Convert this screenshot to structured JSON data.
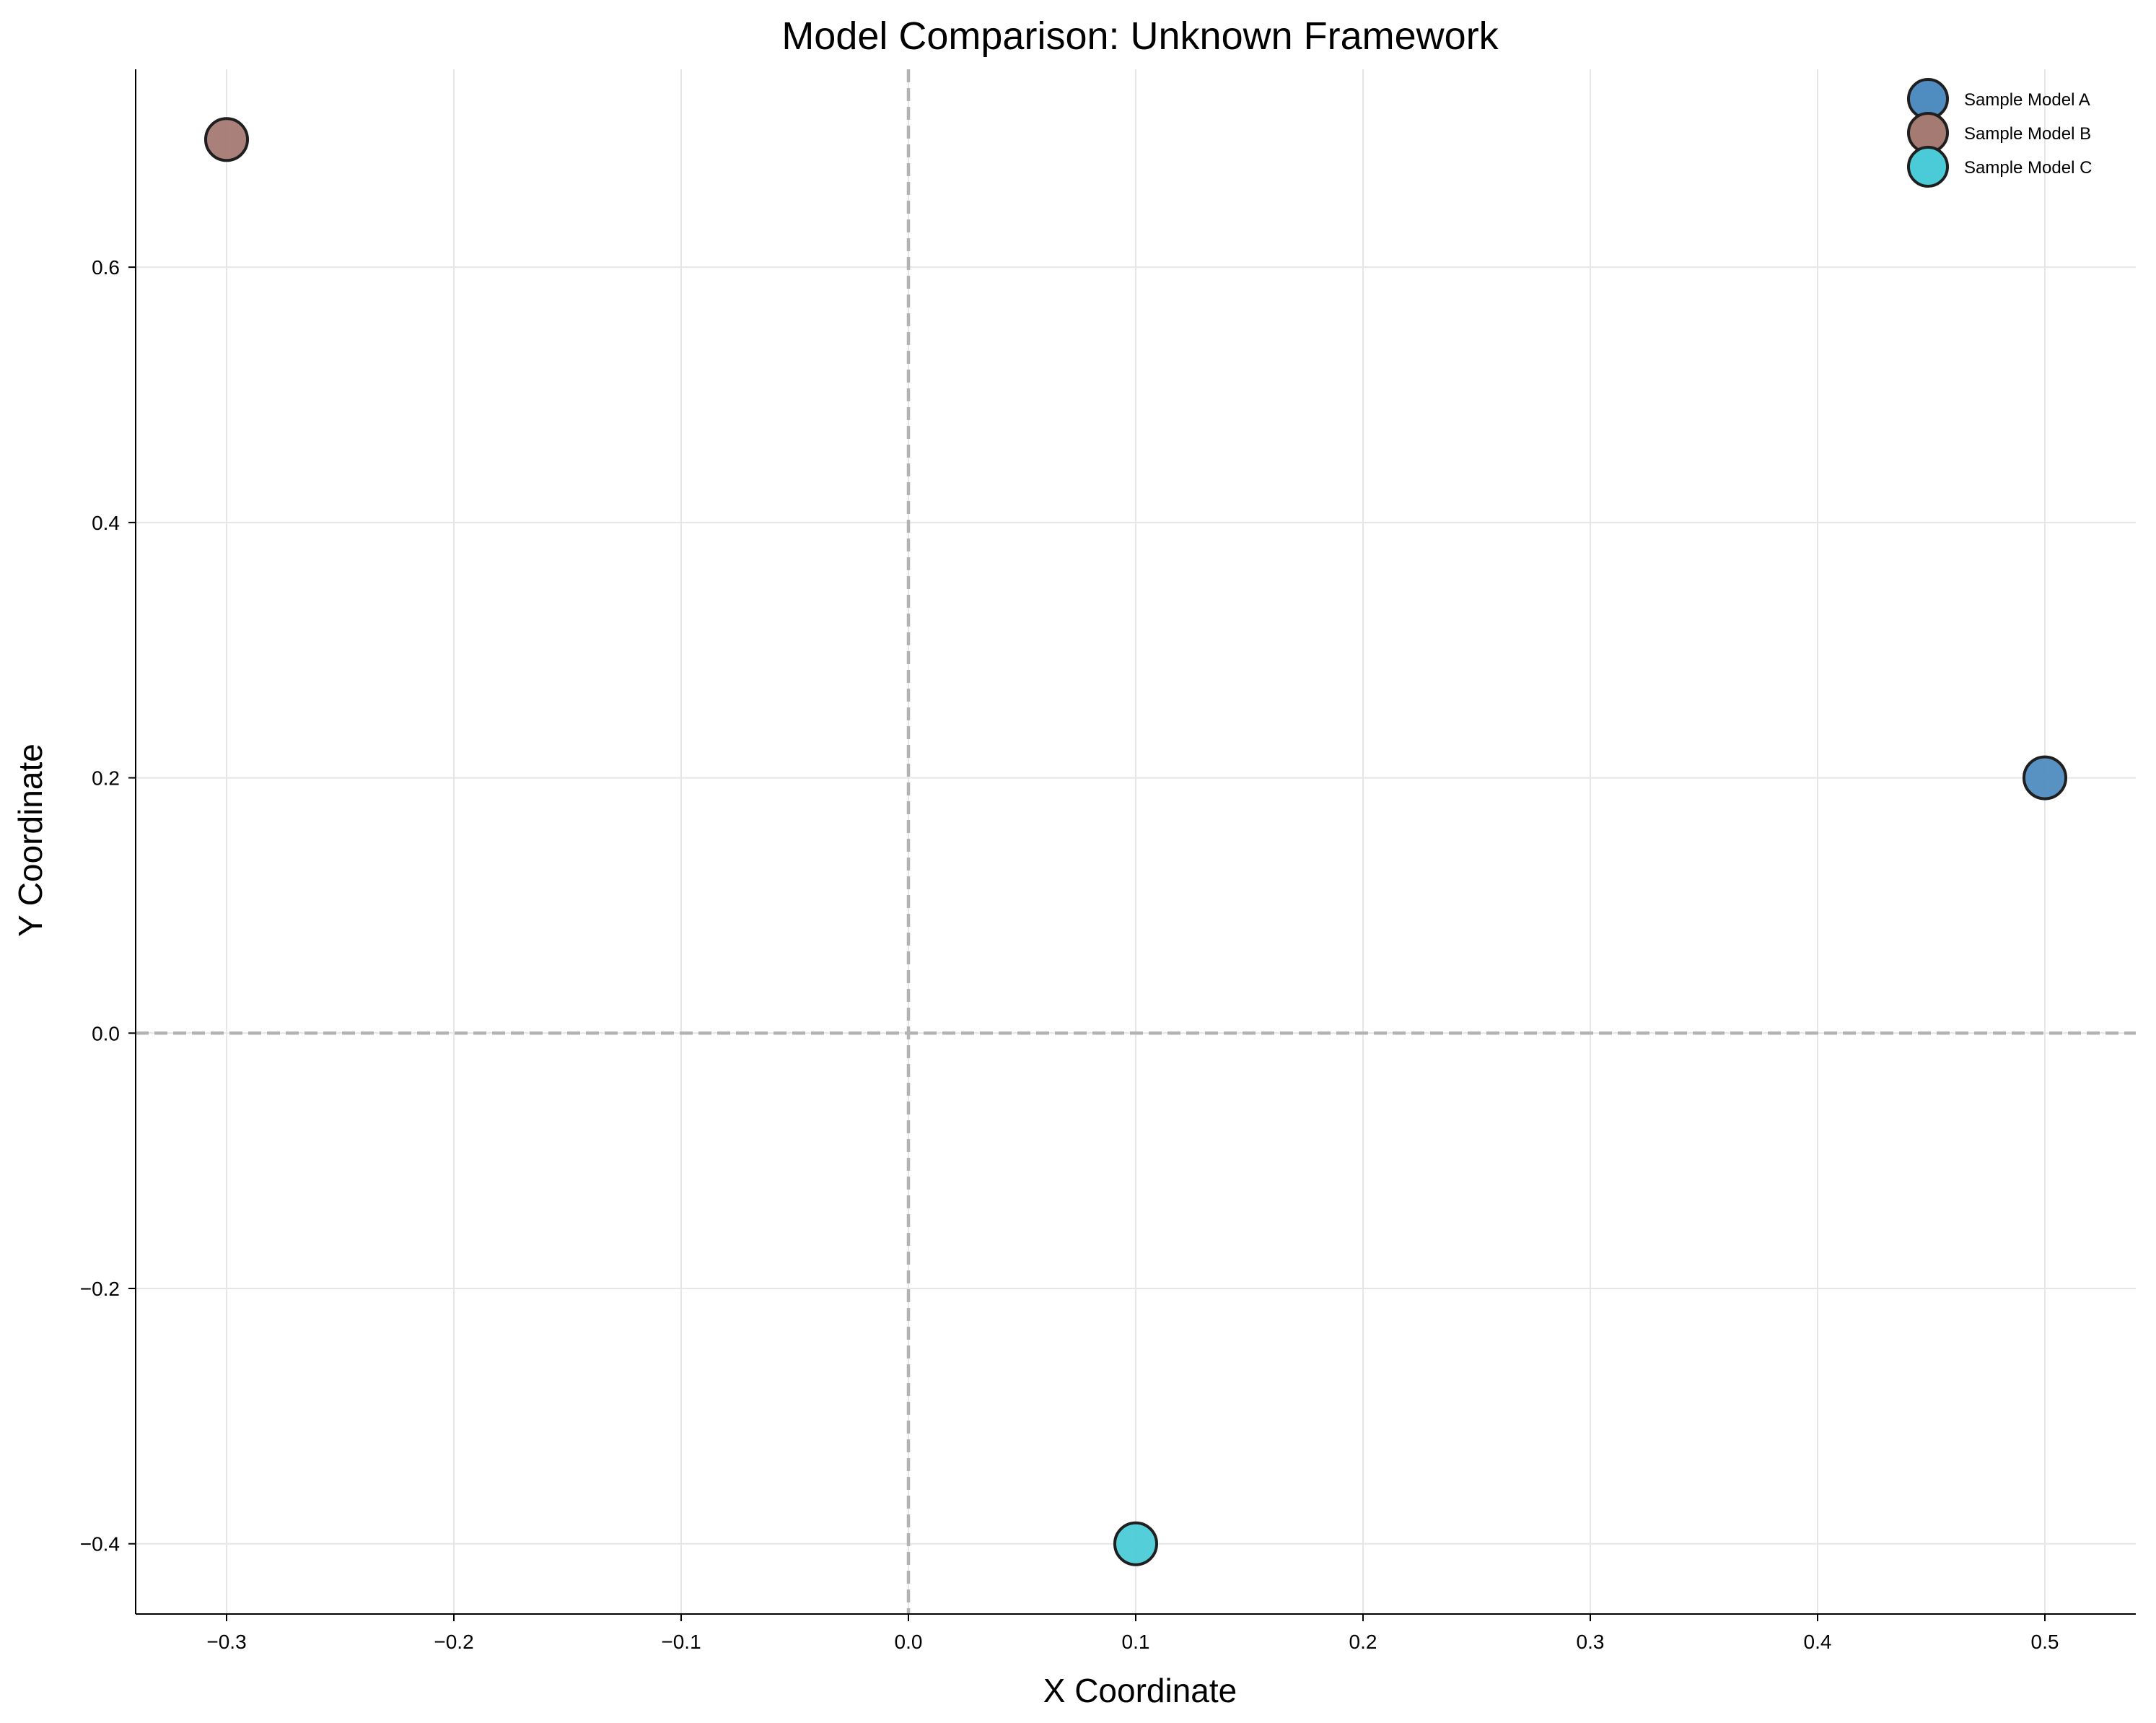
{
  "chart_data": {
    "type": "scatter",
    "title": "Model Comparison: Unknown Framework",
    "xlabel": "X Coordinate",
    "ylabel": "Y Coordinate",
    "xlim": [
      -0.34,
      0.54
    ],
    "ylim": [
      -0.455,
      0.755
    ],
    "xticks": [
      -0.3,
      -0.2,
      -0.1,
      0.0,
      0.1,
      0.2,
      0.3,
      0.4,
      0.5
    ],
    "yticks": [
      -0.4,
      -0.2,
      0.0,
      0.2,
      0.4,
      0.6
    ],
    "xtick_labels": [
      "−0.3",
      "−0.2",
      "−0.1",
      "0.0",
      "0.1",
      "0.2",
      "0.3",
      "0.4",
      "0.5"
    ],
    "ytick_labels": [
      "−0.4",
      "−0.2",
      "0.0",
      "0.2",
      "0.4",
      "0.6"
    ],
    "grid": true,
    "reference_lines": {
      "x": 0.0,
      "y": 0.0,
      "style": "dashed"
    },
    "legend_position": "top-right",
    "series": [
      {
        "name": "Sample Model A",
        "color": "#4f8cc0",
        "points": [
          {
            "x": 0.5,
            "y": 0.2
          }
        ]
      },
      {
        "name": "Sample Model B",
        "color": "#a47a73",
        "points": [
          {
            "x": -0.3,
            "y": 0.7
          }
        ]
      },
      {
        "name": "Sample Model C",
        "color": "#4bcbd7",
        "points": [
          {
            "x": 0.1,
            "y": -0.4
          }
        ]
      }
    ]
  }
}
